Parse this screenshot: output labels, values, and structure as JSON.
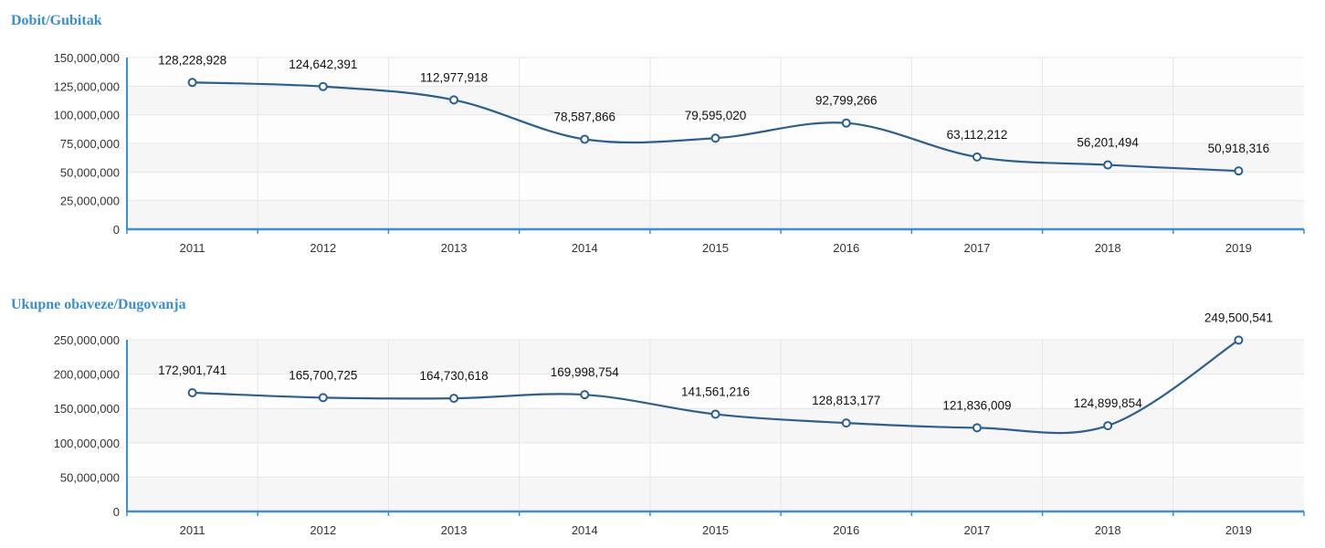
{
  "chart_data": [
    {
      "type": "line",
      "title": "Dobit/Gubitak",
      "categories": [
        "2011",
        "2012",
        "2013",
        "2014",
        "2015",
        "2016",
        "2017",
        "2018",
        "2019"
      ],
      "values": [
        128228928,
        124642391,
        112977918,
        78587866,
        79595020,
        92799266,
        63112212,
        56201494,
        50918316
      ],
      "data_labels": [
        "128,228,928",
        "124,642,391",
        "112,977,918",
        "78,587,866",
        "79,595,020",
        "92,799,266",
        "63,112,212",
        "56,201,494",
        "50,918,316"
      ],
      "ylim": [
        0,
        150000000
      ],
      "yticks": [
        0,
        25000000,
        50000000,
        75000000,
        100000000,
        125000000,
        150000000
      ],
      "ytick_labels": [
        "0",
        "25,000,000",
        "50,000,000",
        "75,000,000",
        "100,000,000",
        "125,000,000",
        "150,000,000"
      ],
      "xlabel": "",
      "ylabel": "",
      "grid": true,
      "line_color": "#2a5f8f",
      "axis_color": "#3a8fd0"
    },
    {
      "type": "line",
      "title": "Ukupne obaveze/Dugovanja",
      "categories": [
        "2011",
        "2012",
        "2013",
        "2014",
        "2015",
        "2016",
        "2017",
        "2018",
        "2019"
      ],
      "values": [
        172901741,
        165700725,
        164730618,
        169998754,
        141561216,
        128813177,
        121836009,
        124899854,
        249500541
      ],
      "data_labels": [
        "172,901,741",
        "165,700,725",
        "164,730,618",
        "169,998,754",
        "141,561,216",
        "128,813,177",
        "121,836,009",
        "124,899,854",
        "249,500,541"
      ],
      "ylim": [
        0,
        250000000
      ],
      "yticks": [
        0,
        50000000,
        100000000,
        150000000,
        200000000,
        250000000
      ],
      "ytick_labels": [
        "0",
        "50,000,000",
        "100,000,000",
        "150,000,000",
        "200,000,000",
        "250,000,000"
      ],
      "xlabel": "",
      "ylabel": "",
      "grid": true,
      "line_color": "#2a5f8f",
      "axis_color": "#3a8fd0"
    }
  ]
}
